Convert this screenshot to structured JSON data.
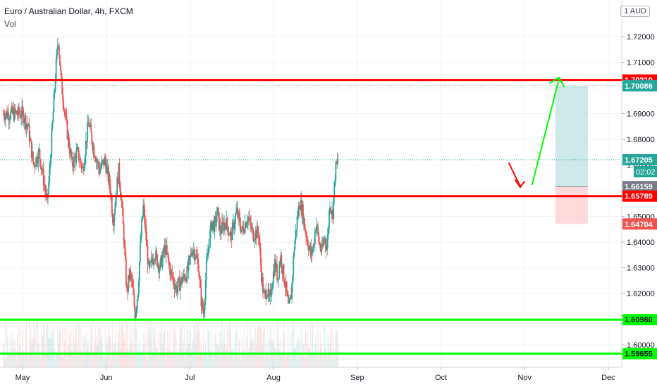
{
  "header": {
    "title": "Euro / Australian Dollar, 4h, FXCM",
    "vol_label": "Vol",
    "currency": "1 AUD"
  },
  "colors": {
    "up": "#26a69a",
    "down": "#ef5350",
    "red_line": "#ff0000",
    "green_line": "#00ff00",
    "arrow_up": "#00ff00",
    "arrow_down": "#ff0000",
    "target_zone": "#b2dfdb",
    "stop_zone": "#ffcdd2",
    "tag_green": "#26a69a",
    "tag_red": "#ef5350",
    "tag_grey": "#787b86"
  },
  "chart_data": {
    "type": "candlestick",
    "title": "Euro / Australian Dollar, 4h, FXCM",
    "x_tick_labels": [
      "May",
      "Jun",
      "Jul",
      "Aug",
      "Sep",
      "Oct",
      "Nov",
      "Dec"
    ],
    "y_tick_labels": [
      "1.60000",
      "1.61000",
      "1.62000",
      "1.63000",
      "1.64000",
      "1.65000",
      "1.66000",
      "1.67000",
      "1.68000",
      "1.69000",
      "1.70000",
      "1.71000",
      "1.72000"
    ],
    "ylim": [
      1.5945,
      1.7345
    ],
    "grid": true,
    "price_path": [
      [
        0,
        1.69
      ],
      [
        2,
        1.685
      ],
      [
        4,
        1.67
      ],
      [
        6,
        1.675
      ],
      [
        8,
        1.662
      ],
      [
        9,
        1.655
      ],
      [
        10,
        1.67
      ],
      [
        12,
        1.705
      ],
      [
        13,
        1.72
      ],
      [
        14,
        1.703
      ],
      [
        16,
        1.685
      ],
      [
        18,
        1.67
      ],
      [
        20,
        1.675
      ],
      [
        22,
        1.668
      ],
      [
        24,
        1.687
      ],
      [
        26,
        1.676
      ],
      [
        28,
        1.668
      ],
      [
        30,
        1.672
      ],
      [
        32,
        1.661
      ],
      [
        33,
        1.648
      ],
      [
        35,
        1.668
      ],
      [
        36,
        1.657
      ],
      [
        37,
        1.64
      ],
      [
        38,
        1.62
      ],
      [
        39,
        1.628
      ],
      [
        40,
        1.623
      ],
      [
        41,
        1.612
      ],
      [
        42,
        1.62
      ],
      [
        43,
        1.64
      ],
      [
        44,
        1.654
      ],
      [
        45,
        1.642
      ],
      [
        46,
        1.628
      ],
      [
        48,
        1.636
      ],
      [
        50,
        1.63
      ],
      [
        52,
        1.638
      ],
      [
        54,
        1.628
      ],
      [
        56,
        1.622
      ],
      [
        58,
        1.625
      ],
      [
        60,
        1.628
      ],
      [
        62,
        1.638
      ],
      [
        64,
        1.632
      ],
      [
        65,
        1.618
      ],
      [
        66,
        1.612
      ],
      [
        67,
        1.63
      ],
      [
        68,
        1.64
      ],
      [
        69,
        1.648
      ],
      [
        70,
        1.646
      ],
      [
        71,
        1.652
      ],
      [
        72,
        1.644
      ],
      [
        74,
        1.648
      ],
      [
        76,
        1.642
      ],
      [
        78,
        1.652
      ],
      [
        80,
        1.644
      ],
      [
        82,
        1.65
      ],
      [
        84,
        1.643
      ],
      [
        86,
        1.644
      ],
      [
        87,
        1.628
      ],
      [
        88,
        1.618
      ],
      [
        89,
        1.622
      ],
      [
        90,
        1.616
      ],
      [
        91,
        1.625
      ],
      [
        92,
        1.632
      ],
      [
        93,
        1.626
      ],
      [
        94,
        1.635
      ],
      [
        95,
        1.628
      ],
      [
        96,
        1.622
      ],
      [
        97,
        1.613
      ],
      [
        98,
        1.62
      ],
      [
        99,
        1.638
      ],
      [
        100,
        1.648
      ],
      [
        101,
        1.656
      ],
      [
        102,
        1.652
      ],
      [
        103,
        1.645
      ],
      [
        104,
        1.64
      ],
      [
        105,
        1.635
      ],
      [
        106,
        1.638
      ],
      [
        107,
        1.648
      ],
      [
        108,
        1.64
      ],
      [
        109,
        1.636
      ],
      [
        110,
        1.642
      ],
      [
        111,
        1.638
      ],
      [
        112,
        1.656
      ],
      [
        113,
        1.65
      ],
      [
        114,
        1.668
      ],
      [
        115,
        1.6718
      ]
    ],
    "price_path_x_unit": "days since May 1",
    "volume_note": "volume bars shown as faint histogram at bottom"
  },
  "levels": {
    "resistance": 1.7031,
    "resistance_label": "1.70310",
    "support": 1.65789,
    "support_label": "1.65789",
    "green_line_1": 1.6098,
    "green_line_1_label": "1.60980",
    "green_line_2": 1.59655,
    "green_line_2_label": "1.59655"
  },
  "position": {
    "target": 1.70086,
    "target_label": "1.70086",
    "entry": 1.66159,
    "entry_label": "1.66159",
    "stop": 1.64704,
    "stop_label": "1.64704",
    "current": 1.67205,
    "current_label": "1.67205",
    "countdown": "02:02"
  }
}
